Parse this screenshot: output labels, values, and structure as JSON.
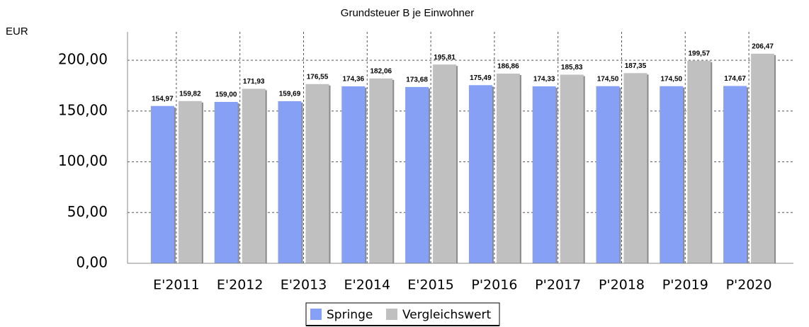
{
  "chart_data": {
    "type": "bar",
    "title": "Grundsteuer B je Einwohner",
    "y_label": "EUR",
    "categories": [
      "E'2011",
      "E'2012",
      "E'2013",
      "E'2014",
      "E'2015",
      "P'2016",
      "P'2017",
      "P'2018",
      "P'2019",
      "P'2020"
    ],
    "series": [
      {
        "name": "Springe",
        "color": "#86a0f5",
        "values": [
          154.97,
          159.0,
          159.69,
          174.36,
          173.68,
          175.49,
          174.33,
          174.5,
          174.5,
          174.67
        ],
        "value_labels": [
          "154,97",
          "159,00",
          "159,69",
          "174,36",
          "173,68",
          "175,49",
          "174,33",
          "174,50",
          "174,50",
          "174,67"
        ]
      },
      {
        "name": "Vergleichswert",
        "color": "#c0c0c0",
        "values": [
          159.82,
          171.93,
          176.55,
          182.06,
          195.81,
          186.86,
          185.83,
          187.35,
          199.57,
          206.47
        ],
        "value_labels": [
          "159,82",
          "171,93",
          "176,55",
          "182,06",
          "195,81",
          "186,86",
          "185,83",
          "187,35",
          "199,57",
          "206,47"
        ]
      }
    ],
    "ylim": [
      0,
      228
    ],
    "yticks": [
      {
        "value": 0,
        "label": "0,00"
      },
      {
        "value": 50,
        "label": "50,00"
      },
      {
        "value": 100,
        "label": "100,00"
      },
      {
        "value": 150,
        "label": "150,00"
      },
      {
        "value": 200,
        "label": "200,00"
      }
    ],
    "grid": true,
    "legend": "bottom"
  }
}
